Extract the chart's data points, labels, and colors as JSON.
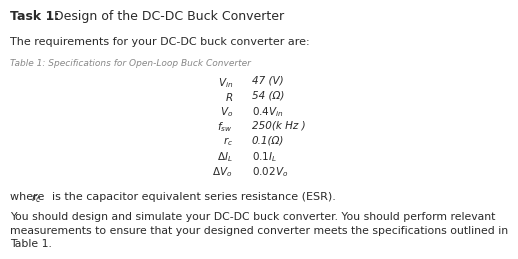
{
  "title_bold": "Task 1:",
  "title_rest": " Design of the DC-DC Buck Converter",
  "intro": "The requirements for your DC-DC buck converter are:",
  "table_caption": "Table 1: Specifications for Open-Loop Buck Converter",
  "table_labels": [
    "$V_{in}$",
    "$R$",
    "$V_o$",
    "$f_{sw}$",
    "$r_c$",
    "$\\Delta I_{L}$",
    "$\\Delta V_o$"
  ],
  "table_values": [
    "47 (V)",
    "54 (Ω)",
    "$0.4V_{in}$",
    "250(k Hz )",
    "0.1(Ω)",
    "$0.1I_L$",
    "$0.02V_o$"
  ],
  "where_line1": "where ",
  "where_rc": "$r_c$",
  "where_line2": "  is the capacitor equivalent series resistance (ESR).",
  "footer": "You should design and simulate your DC-DC buck converter. You should perform relevant\nmeasurements to ensure that your designed converter meets the specifications outlined in\nTable 1.",
  "bg_color": "#ffffff",
  "text_color": "#2a2a2a",
  "gray_color": "#888888"
}
